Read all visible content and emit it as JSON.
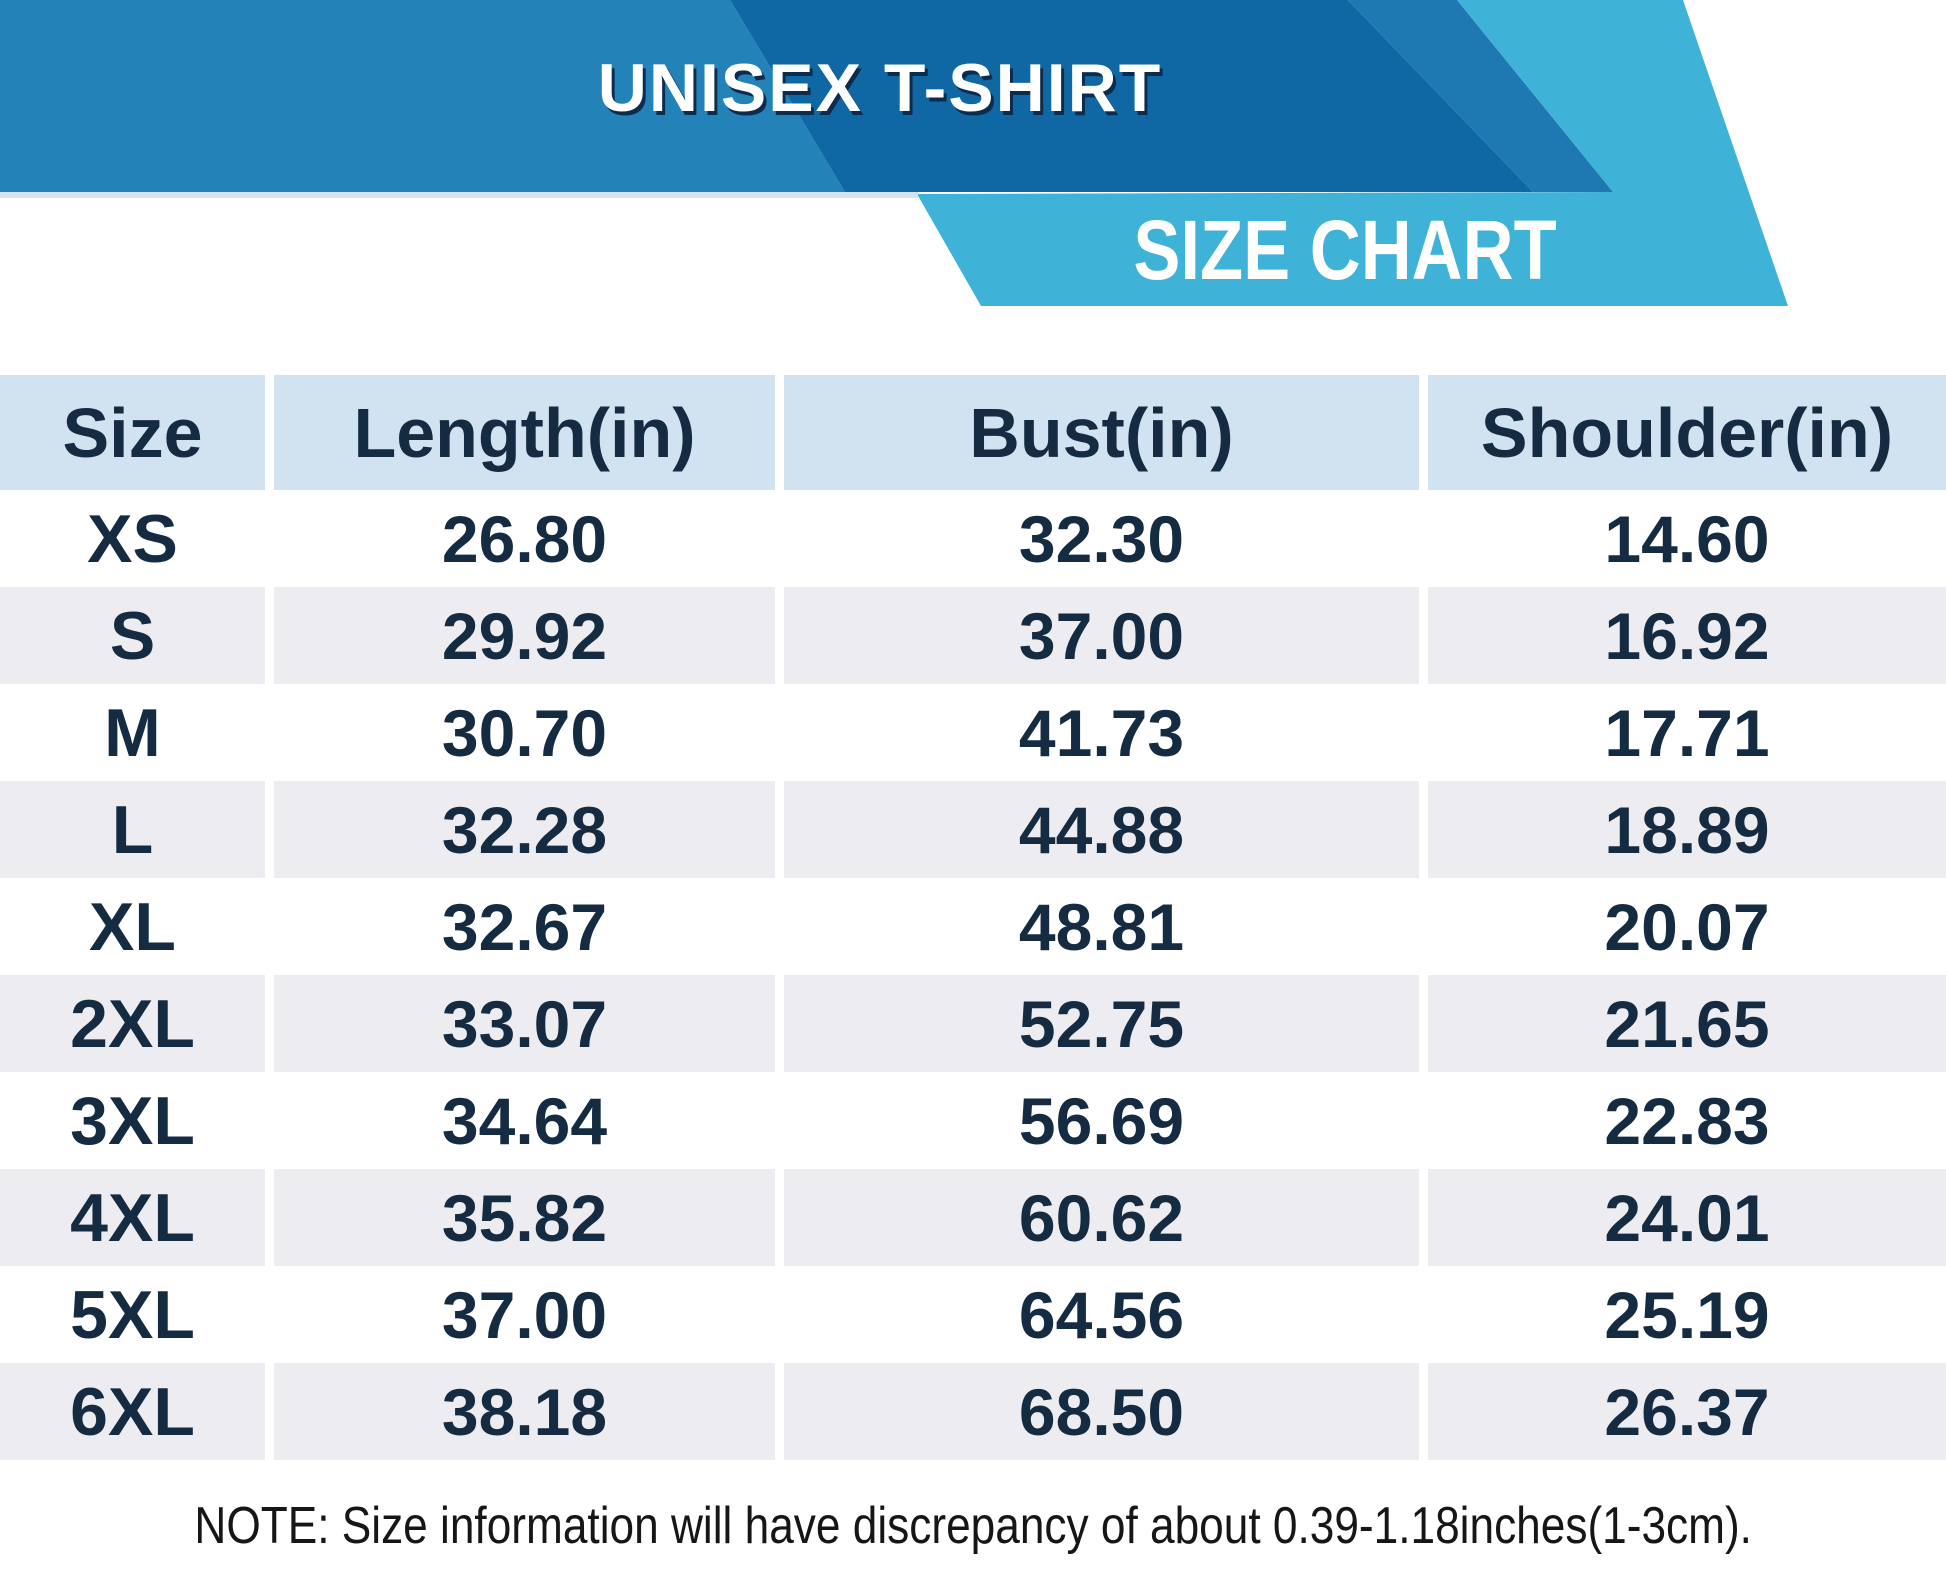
{
  "banner": {
    "title": "UNISEX T-SHIRT",
    "subtitle": "SIZE CHART"
  },
  "chart_data": {
    "type": "table",
    "title": "UNISEX T-SHIRT",
    "subtitle": "SIZE CHART",
    "columns": [
      "Size",
      "Length(in)",
      "Bust(in)",
      "Shoulder(in)"
    ],
    "rows": [
      [
        "XS",
        "26.80",
        "32.30",
        "14.60"
      ],
      [
        "S",
        "29.92",
        "37.00",
        "16.92"
      ],
      [
        "M",
        "30.70",
        "41.73",
        "17.71"
      ],
      [
        "L",
        "32.28",
        "44.88",
        "18.89"
      ],
      [
        "XL",
        "32.67",
        "48.81",
        "20.07"
      ],
      [
        "2XL",
        "33.07",
        "52.75",
        "21.65"
      ],
      [
        "3XL",
        "34.64",
        "56.69",
        "22.83"
      ],
      [
        "4XL",
        "35.82",
        "60.62",
        "24.01"
      ],
      [
        "5XL",
        "37.00",
        "64.56",
        "25.19"
      ],
      [
        "6XL",
        "38.18",
        "68.50",
        "26.37"
      ]
    ],
    "units": "inches"
  },
  "footer": {
    "note": "NOTE: Size information will have discrepancy of about 0.39-1.18inches(1-3cm)."
  },
  "colors": {
    "banner_medium_blue": "#2382B7",
    "banner_dark_blue": "#0F67A3",
    "banner_mid_blue": "#1E78B1",
    "banner_light_blue": "#3FB2D8",
    "banner_bottom_line": "#D5E4EF",
    "title_text": "#FFFFFF",
    "title_shadow": "#0C2C4E",
    "table_header_bg": "#D1E3F0",
    "table_alt_row_bg": "#EDEDF1",
    "table_text_navy": "#152B42",
    "note_text": "#161616",
    "background": "#FFFFFF"
  }
}
